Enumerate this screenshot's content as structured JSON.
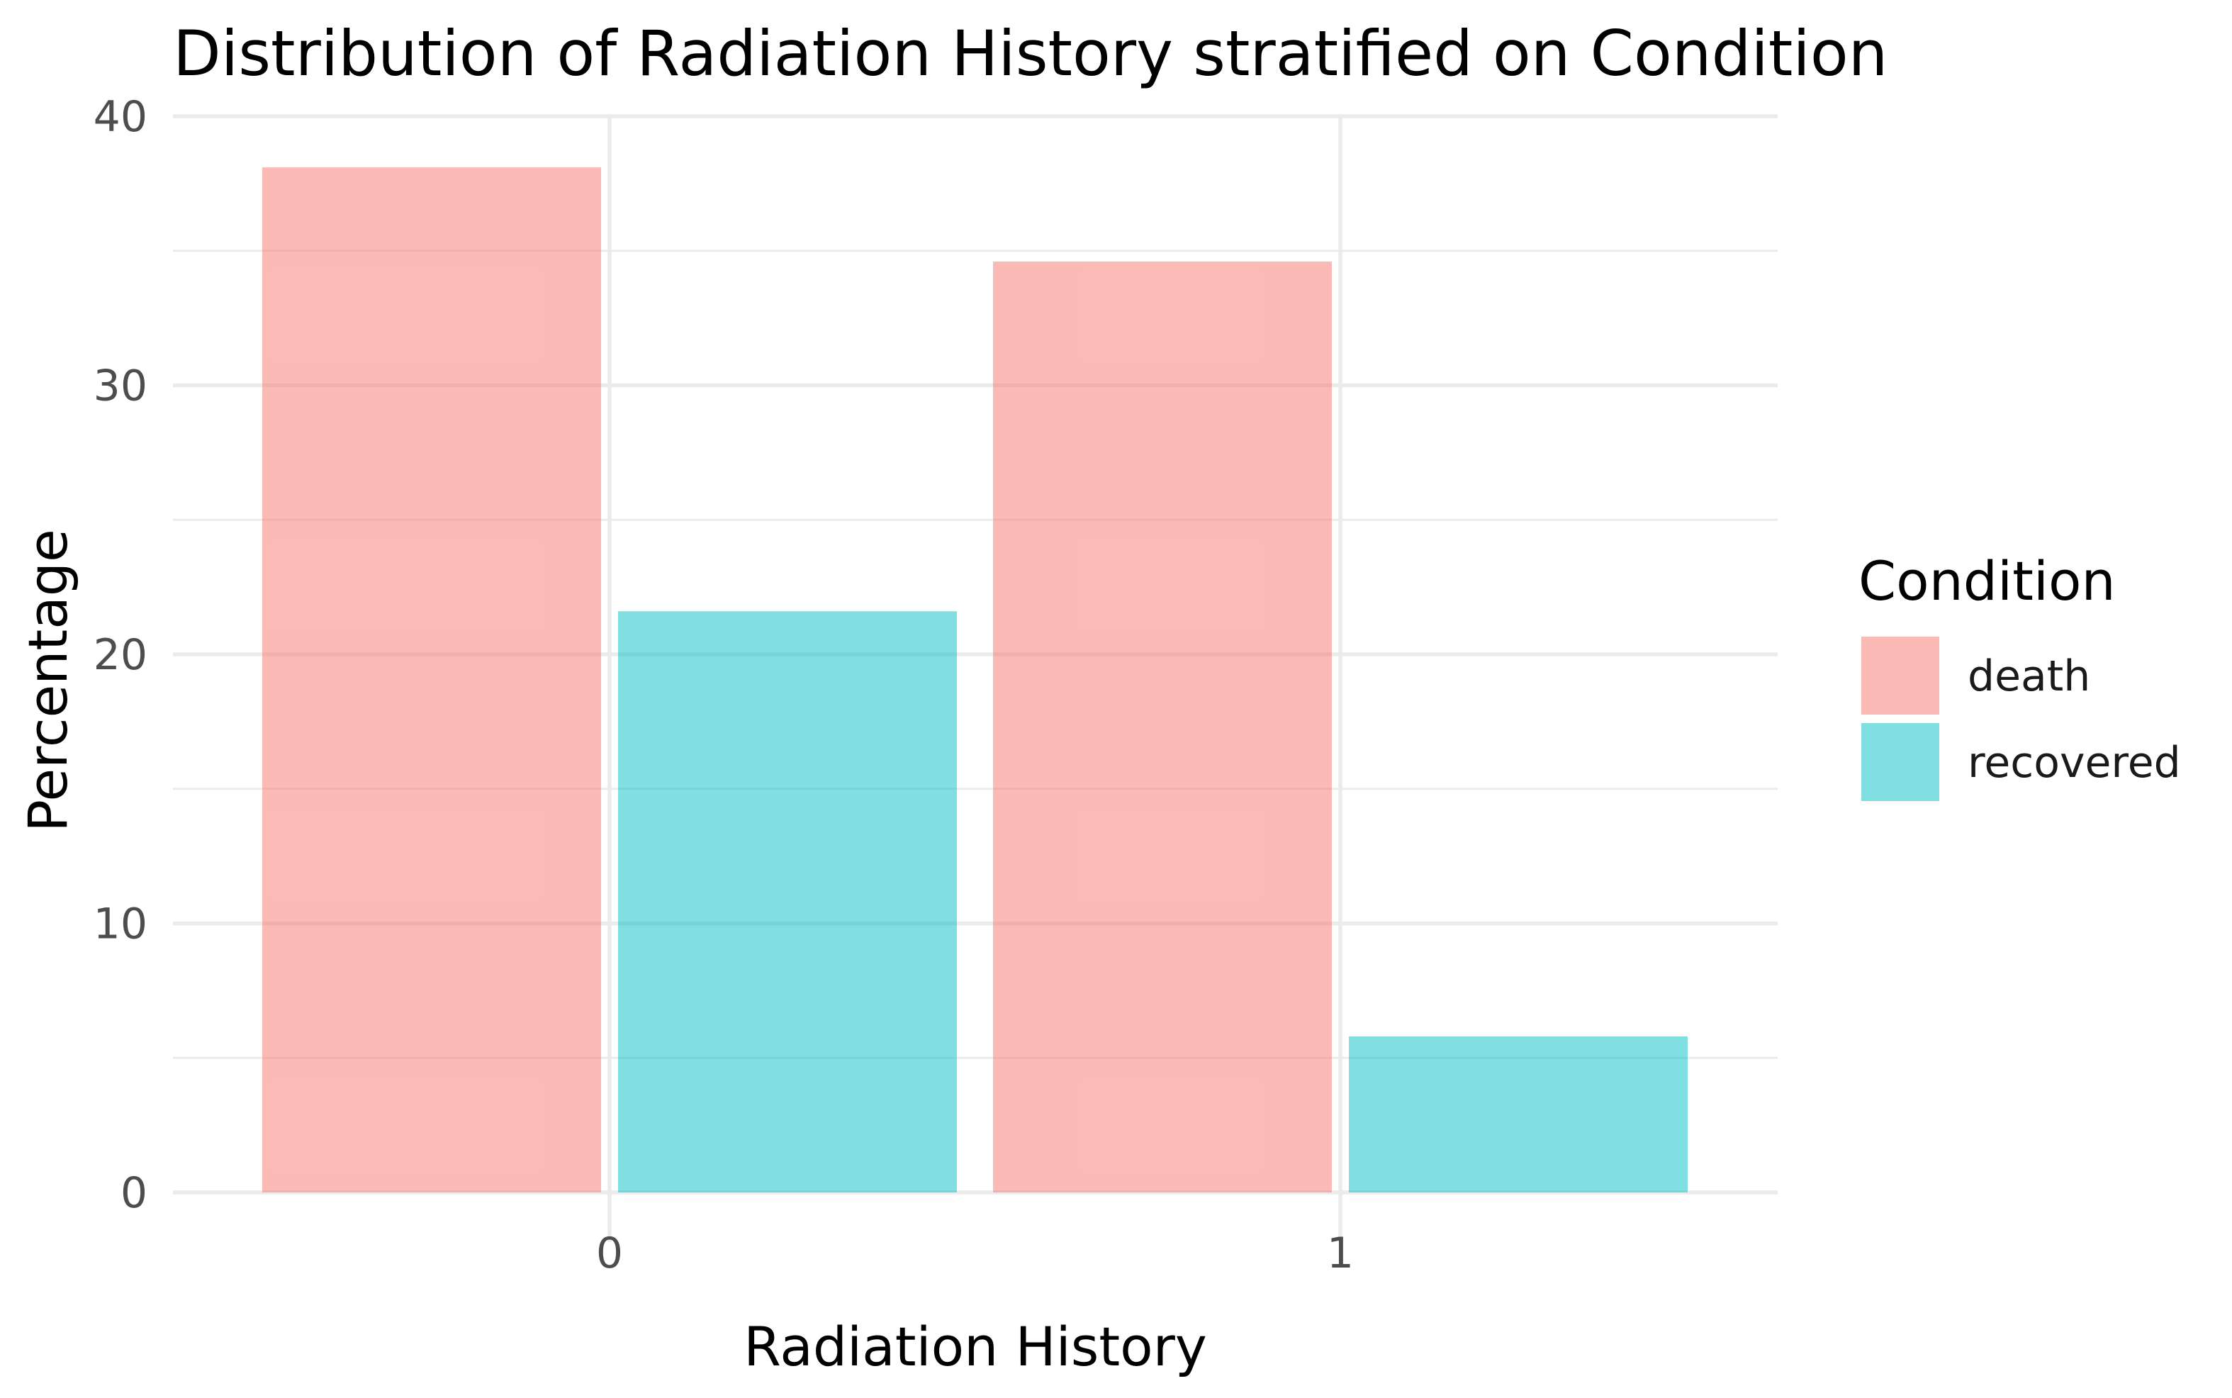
{
  "chart_data": {
    "type": "bar",
    "title": "Distribution of Radiation History stratified on Condition",
    "xlabel": "Radiation History",
    "ylabel": "Percentage",
    "categories": [
      "0",
      "1"
    ],
    "series": [
      {
        "name": "death",
        "color": "#F8766D",
        "values": [
          38.1,
          34.6
        ]
      },
      {
        "name": "recovered",
        "color": "#00BFC4",
        "values": [
          21.6,
          5.8
        ]
      }
    ],
    "ylim": [
      0,
      40
    ],
    "yticks": [
      0,
      10,
      20,
      30,
      40
    ],
    "grid": true,
    "bar_opacity": 0.5,
    "legend": {
      "title": "Condition",
      "placement": "right"
    }
  }
}
